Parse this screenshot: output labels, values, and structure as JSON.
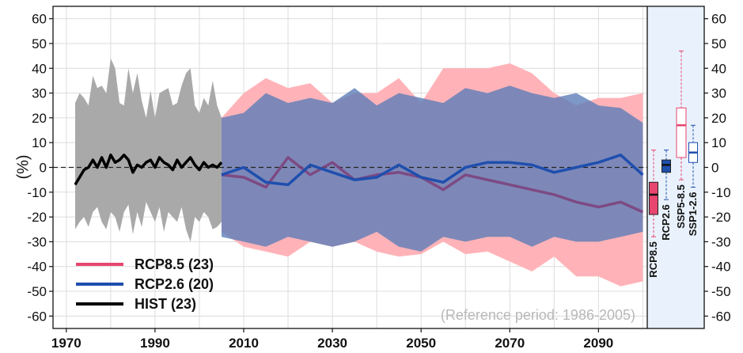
{
  "chart_data": {
    "type": "area",
    "title": "",
    "xlabel": "",
    "ylabel": "(%)",
    "x_ticks": [
      "1970",
      "1990",
      "2010",
      "2030",
      "2050",
      "2070",
      "2090"
    ],
    "y_ticks": [
      "60",
      "50",
      "40",
      "30",
      "20",
      "10",
      "0",
      "-10",
      "-20",
      "-30",
      "-40",
      "-50",
      "-60"
    ],
    "xlim": [
      1967,
      2101
    ],
    "ylim": [
      -65,
      65
    ],
    "grid": true,
    "zero_line": "dashed",
    "legend_position": "bottom-left",
    "annotation": "(Reference period: 1986-2005)",
    "colors": {
      "rcp85": "#e8456f",
      "rcp85_band": "#ffb3b8",
      "rcp26": "#1f4fae",
      "rcp26_band": "#5d7db8",
      "hist": "#000000",
      "hist_band": "#a9a9a9",
      "box_panel": "#e9f2fc"
    },
    "series": [
      {
        "name": "HIST (23)",
        "x": [
          1972,
          1973,
          1974,
          1975,
          1976,
          1977,
          1978,
          1979,
          1980,
          1981,
          1982,
          1983,
          1984,
          1985,
          1986,
          1987,
          1988,
          1989,
          1990,
          1991,
          1992,
          1993,
          1994,
          1995,
          1996,
          1997,
          1998,
          1999,
          2000,
          2001,
          2002,
          2003,
          2004,
          2005
        ],
        "mean": [
          -7,
          -4,
          -1,
          0,
          3,
          0,
          4,
          0,
          5,
          2,
          3,
          5,
          3,
          -2,
          1,
          0,
          2,
          3,
          0,
          4,
          2,
          1,
          -1,
          3,
          0,
          2,
          4,
          1,
          -1,
          2,
          0,
          1,
          0,
          2
        ],
        "upper": [
          26,
          30,
          28,
          25,
          37,
          32,
          33,
          30,
          44,
          40,
          26,
          25,
          40,
          30,
          38,
          27,
          20,
          31,
          20,
          30,
          31,
          32,
          25,
          26,
          33,
          38,
          40,
          25,
          22,
          28,
          25,
          35,
          25,
          20
        ],
        "lower": [
          -25,
          -22,
          -20,
          -24,
          -18,
          -16,
          -22,
          -25,
          -18,
          -20,
          -26,
          -18,
          -15,
          -27,
          -18,
          -24,
          -14,
          -18,
          -22,
          -16,
          -26,
          -18,
          -20,
          -22,
          -16,
          -25,
          -30,
          -20,
          -22,
          -18,
          -20,
          -25,
          -24,
          -22
        ]
      },
      {
        "name": "RCP8.5 (23)",
        "x": [
          2005,
          2010,
          2015,
          2020,
          2025,
          2030,
          2035,
          2040,
          2045,
          2050,
          2055,
          2060,
          2065,
          2070,
          2075,
          2080,
          2085,
          2090,
          2095,
          2100
        ],
        "mean": [
          -3,
          -4,
          -8,
          4,
          -3,
          2,
          -5,
          -3,
          -2,
          -4,
          -9,
          -3,
          -5,
          -7,
          -9,
          -11,
          -14,
          -16,
          -14,
          -18
        ],
        "upper": [
          20,
          30,
          36,
          32,
          34,
          26,
          30,
          30,
          36,
          26,
          40,
          40,
          40,
          42,
          38,
          30,
          25,
          28,
          28,
          30
        ],
        "lower": [
          -26,
          -32,
          -34,
          -36,
          -30,
          -32,
          -30,
          -34,
          -36,
          -35,
          -30,
          -35,
          -34,
          -38,
          -42,
          -36,
          -44,
          -44,
          -48,
          -46
        ]
      },
      {
        "name": "RCP2.6 (20)",
        "x": [
          2005,
          2010,
          2015,
          2020,
          2025,
          2030,
          2035,
          2040,
          2045,
          2050,
          2055,
          2060,
          2065,
          2070,
          2075,
          2080,
          2085,
          2090,
          2095,
          2100
        ],
        "mean": [
          -3,
          0,
          -6,
          -7,
          1,
          -2,
          -5,
          -4,
          1,
          -4,
          -6,
          0,
          2,
          2,
          1,
          -2,
          0,
          2,
          5,
          -3
        ],
        "upper": [
          20,
          22,
          30,
          26,
          28,
          26,
          32,
          25,
          30,
          28,
          26,
          32,
          30,
          33,
          30,
          28,
          30,
          25,
          24,
          18
        ],
        "lower": [
          -28,
          -30,
          -32,
          -28,
          -30,
          -32,
          -30,
          -26,
          -32,
          -34,
          -28,
          -30,
          -28,
          -28,
          -32,
          -28,
          -30,
          -30,
          -28,
          -26
        ]
      }
    ],
    "legend": [
      "RCP8.5 (23)",
      "RCP2.6 (20)",
      "HIST (23)"
    ],
    "boxplots": [
      {
        "label": "RCP8.5",
        "style": "filled",
        "color": "#e8456f",
        "whisker_low": -28,
        "q1": -19,
        "median": -11,
        "q3": -6,
        "whisker_high": 7
      },
      {
        "label": "RCP2.6",
        "style": "filled",
        "color": "#1f4fae",
        "whisker_low": -13,
        "q1": -2,
        "median": 1,
        "q3": 3,
        "whisker_high": 7
      },
      {
        "label": "SSP5-8.5",
        "style": "outline",
        "color": "#e8456f",
        "whisker_low": -5,
        "q1": 4,
        "median": 17,
        "q3": 24,
        "whisker_high": 47
      },
      {
        "label": "SSP1-2.6",
        "style": "outline",
        "color": "#1f4fae",
        "whisker_low": -8,
        "q1": 2,
        "median": 6,
        "q3": 10,
        "whisker_high": 17
      }
    ]
  }
}
